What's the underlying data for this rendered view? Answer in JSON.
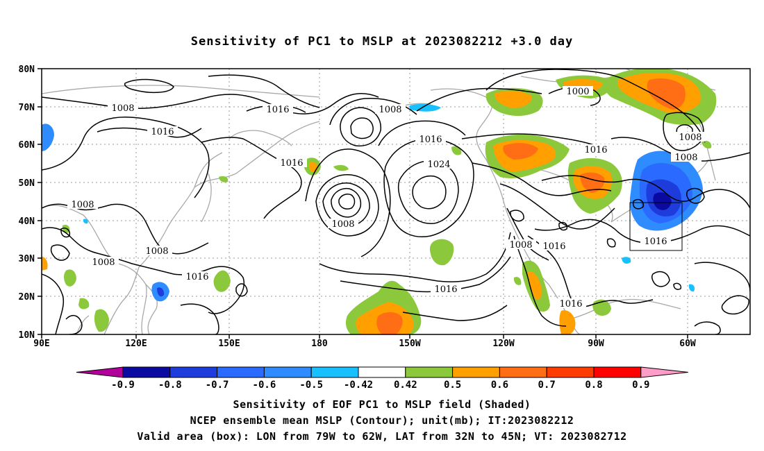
{
  "title": "Sensitivity of PC1 to MSLP at 2023082212 +3.0 day",
  "map": {
    "lat_labels": [
      "80N",
      "70N",
      "60N",
      "50N",
      "40N",
      "30N",
      "20N",
      "10N"
    ],
    "lon_labels": [
      "90E",
      "120E",
      "150E",
      "180",
      "150W",
      "120W",
      "90W",
      "60W"
    ],
    "contour_labels": [
      {
        "text": "1008"
      },
      {
        "text": "1016"
      },
      {
        "text": "1016"
      },
      {
        "text": "1008"
      },
      {
        "text": "1016"
      },
      {
        "text": "1016"
      },
      {
        "text": "1024"
      },
      {
        "text": "1000"
      },
      {
        "text": "1016"
      },
      {
        "text": "1008"
      },
      {
        "text": "1008"
      },
      {
        "text": "1008"
      },
      {
        "text": "1008"
      },
      {
        "text": "1008"
      },
      {
        "text": "1008"
      },
      {
        "text": "1016"
      },
      {
        "text": "1016"
      },
      {
        "text": "1008"
      },
      {
        "text": "1016"
      },
      {
        "text": "1016"
      }
    ],
    "valid_box": {
      "lon_from": "79W",
      "lon_to": "62W",
      "lat_from": "32N",
      "lat_to": "45N"
    }
  },
  "colorbar": {
    "labels": [
      "-0.9",
      "-0.8",
      "-0.7",
      "-0.6",
      "-0.5",
      "-0.42",
      "0.42",
      "0.5",
      "0.6",
      "0.7",
      "0.8",
      "0.9"
    ],
    "colors": [
      "#b4009b",
      "#0a0aa0",
      "#1e3cdc",
      "#2a6aff",
      "#2f8cff",
      "#19c0ff",
      "#ffffff",
      "#8cc83c",
      "#ffa000",
      "#ff6e14",
      "#ff3c00",
      "#ff0000",
      "#ff9cc8"
    ]
  },
  "captions": {
    "line1": "Sensitivity of EOF PC1 to MSLP field (Shaded)",
    "line2": "NCEP ensemble mean MSLP (Contour); unit(mb); IT:2023082212",
    "line3": "Valid area (box): LON from 79W to 62W, LAT from 32N to 45N; VT: 2023082712"
  }
}
